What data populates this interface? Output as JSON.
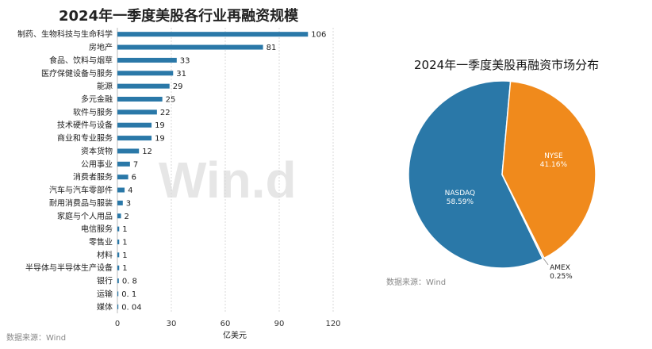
{
  "chart_data": [
    {
      "type": "bar",
      "orientation": "horizontal",
      "title": "2024年一季度美股各行业再融资规模",
      "xlabel": "亿美元",
      "ylabel": "",
      "xlim": [
        0,
        120
      ],
      "xticks": [
        "0",
        "30",
        "60",
        "90",
        "120"
      ],
      "grid": "vertical dashed",
      "color": "#2a78a8",
      "categories": [
        "制药、生物科技与生命科学",
        "房地产",
        "食品、饮料与烟草",
        "医疗保健设备与服务",
        "能源",
        "多元金融",
        "软件与服务",
        "技术硬件与设备",
        "商业和专业服务",
        "资本货物",
        "公用事业",
        "消费者服务",
        "汽车与汽车零部件",
        "耐用消费品与服装",
        "家庭与个人用品",
        "电信服务",
        "零售业",
        "材料",
        "半导体与半导体生产设备",
        "银行",
        "运输",
        "媒体"
      ],
      "values": [
        106,
        81,
        33,
        31,
        29,
        25,
        22,
        19,
        19,
        12,
        7,
        6,
        4,
        3,
        2,
        1,
        1,
        1,
        1,
        0.8,
        0.1,
        0.04
      ],
      "value_labels": [
        "106",
        "81",
        "33",
        "31",
        "29",
        "25",
        "22",
        "19",
        "19",
        "12",
        "7",
        "6",
        "4",
        "3",
        "2",
        "1",
        "1",
        "1",
        "1",
        "0. 8",
        "0. 1",
        "0. 04"
      ],
      "source": "数据来源：Wind"
    },
    {
      "type": "pie",
      "title": "2024年一季度美股再融资市场分布",
      "slices": [
        {
          "label": "NASDAQ",
          "value": 58.59,
          "pct_label": "58.59%",
          "color": "#2a78a8"
        },
        {
          "label": "NYSE",
          "value": 41.16,
          "pct_label": "41.16%",
          "color": "#f08a1c"
        },
        {
          "label": "AMEX",
          "value": 0.25,
          "pct_label": "0.25%",
          "color": "#b0b0b0"
        }
      ],
      "source": "数据来源：Wind"
    }
  ],
  "watermark": "Win.d"
}
